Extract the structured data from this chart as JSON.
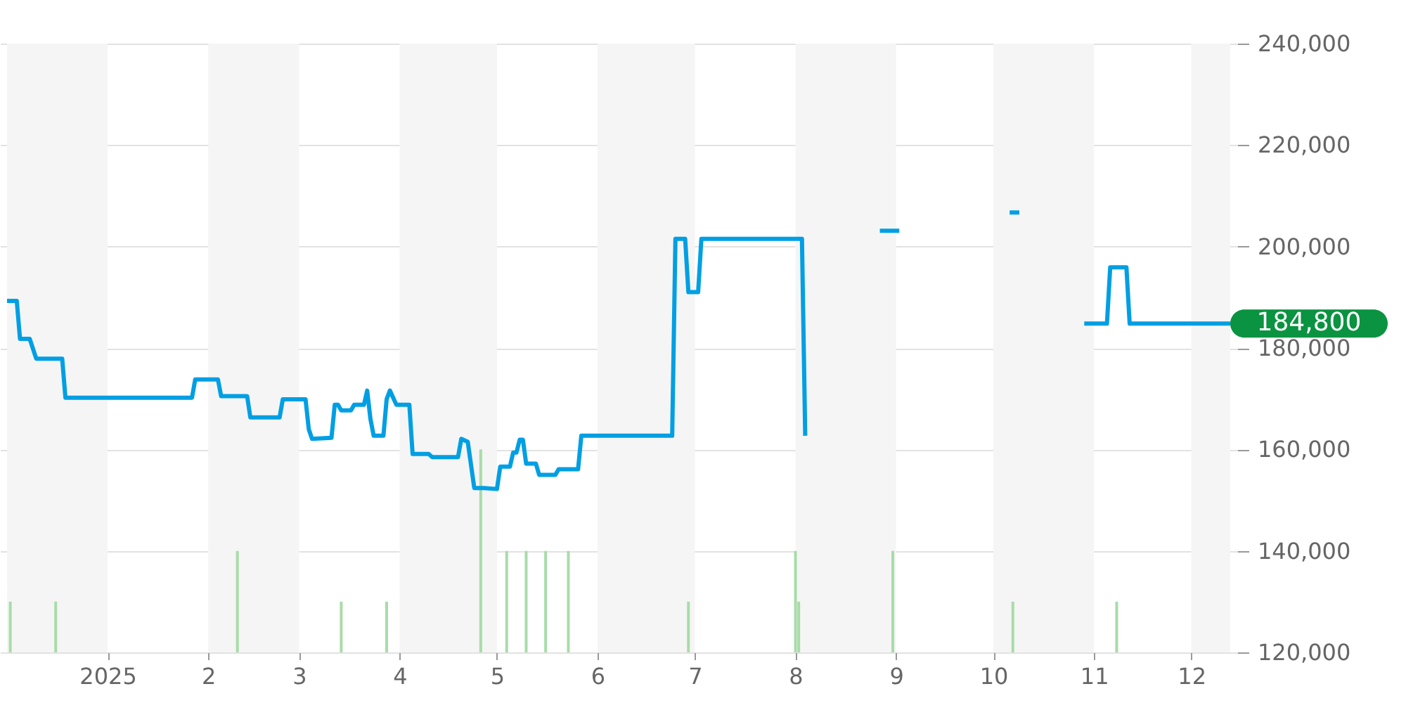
{
  "chart_data": {
    "type": "line",
    "xlim": [
      "2024-12-01",
      "2025-12-13"
    ],
    "ylim": [
      120000,
      240000
    ],
    "yticks": [
      {
        "value": 120000,
        "label": "120,000"
      },
      {
        "value": 140000,
        "label": "140,000"
      },
      {
        "value": 160000,
        "label": "160,000"
      },
      {
        "value": 180000,
        "label": "180,000"
      },
      {
        "value": 200000,
        "label": "200,000"
      },
      {
        "value": 220000,
        "label": "220,000"
      },
      {
        "value": 240000,
        "label": "240,000"
      }
    ],
    "xticks": [
      {
        "value": "2025-01-01",
        "label": "2025"
      },
      {
        "value": "2025-02-01",
        "label": "2"
      },
      {
        "value": "2025-03-01",
        "label": "3"
      },
      {
        "value": "2025-04-01",
        "label": "4"
      },
      {
        "value": "2025-05-01",
        "label": "5"
      },
      {
        "value": "2025-06-01",
        "label": "6"
      },
      {
        "value": "2025-07-01",
        "label": "7"
      },
      {
        "value": "2025-08-01",
        "label": "8"
      },
      {
        "value": "2025-09-01",
        "label": "9"
      },
      {
        "value": "2025-10-01",
        "label": "10"
      },
      {
        "value": "2025-11-01",
        "label": "11"
      },
      {
        "value": "2025-12-01",
        "label": "12"
      }
    ],
    "grid": "y",
    "marker": "none",
    "line_style": "solid",
    "bands": [
      {
        "axis": "x",
        "from": "2024-12-01",
        "to": "2025-01-01",
        "color": "#f5f5f5"
      },
      {
        "axis": "x",
        "from": "2025-02-01",
        "to": "2025-03-01",
        "color": "#f5f5f5"
      },
      {
        "axis": "x",
        "from": "2025-04-01",
        "to": "2025-05-01",
        "color": "#f5f5f5"
      },
      {
        "axis": "x",
        "from": "2025-06-01",
        "to": "2025-07-01",
        "color": "#f5f5f5"
      },
      {
        "axis": "x",
        "from": "2025-08-01",
        "to": "2025-09-01",
        "color": "#f5f5f5"
      },
      {
        "axis": "x",
        "from": "2025-10-01",
        "to": "2025-11-01",
        "color": "#f5f5f5"
      },
      {
        "axis": "x",
        "from": "2025-12-01",
        "to": "2025-12-13",
        "color": "#f5f5f5"
      }
    ],
    "series": [
      {
        "type": "bar",
        "color": "#a8dca8",
        "x": [
          "2024-12-02",
          "2024-12-16",
          "2025-02-10",
          "2025-03-14",
          "2025-03-28",
          "2025-04-26",
          "2025-05-04",
          "2025-05-10",
          "2025-05-16",
          "2025-05-23",
          "2025-06-29",
          "2025-08-01",
          "2025-08-02",
          "2025-08-31",
          "2025-10-07",
          "2025-11-08"
        ],
        "base": [
          120000,
          120000,
          120000,
          120000,
          120000,
          120000,
          120000,
          120000,
          120000,
          120000,
          120000,
          120000,
          120000,
          120000,
          120000,
          120000
        ],
        "values": [
          10000,
          10000,
          20000,
          10000,
          10000,
          40000,
          20000,
          20000,
          20000,
          20000,
          10000,
          20000,
          10000,
          20000,
          10000,
          10000
        ]
      },
      {
        "color": "#009fe3",
        "x": [
          "2024-12-01",
          "2024-12-04",
          "2024-12-05",
          "2024-12-08",
          "2024-12-10",
          "2024-12-18",
          "2024-12-19",
          "2025-01-27",
          "2025-01-28",
          "2025-02-04",
          "2025-02-05",
          "2025-02-13",
          "2025-02-14",
          "2025-02-23",
          "2025-02-24",
          "2025-03-03",
          "2025-03-04",
          "2025-03-05",
          "2025-03-11",
          "2025-03-12",
          "2025-03-13",
          "2025-03-14",
          "2025-03-17",
          "2025-03-18",
          "2025-03-21",
          "2025-03-22",
          "2025-03-23",
          "2025-03-24",
          "2025-03-27",
          "2025-03-28",
          "2025-03-29",
          "2025-03-31",
          "2025-04-04",
          "2025-04-05",
          "2025-04-10",
          "2025-04-11",
          "2025-04-19",
          "2025-04-20",
          "2025-04-22",
          "2025-04-24",
          "2025-04-27",
          "2025-05-01",
          "2025-05-02",
          "2025-05-05",
          "2025-05-06",
          "2025-05-07",
          "2025-05-08",
          "2025-05-09",
          "2025-05-10",
          "2025-05-13",
          "2025-05-14",
          "2025-05-19",
          "2025-05-20",
          "2025-05-26",
          "2025-05-27",
          "2025-06-24",
          "2025-06-25",
          "2025-06-28",
          "2025-06-29",
          "2025-07-02",
          "2025-07-03",
          "2025-08-03",
          "2025-08-04",
          "2025-08-15",
          "2025-08-27",
          "2025-09-02",
          "2025-09-20",
          "2025-10-06",
          "2025-10-09",
          "2025-10-18",
          "2025-10-29",
          "2025-11-05",
          "2025-11-06",
          "2025-11-11",
          "2025-11-12",
          "2025-12-13"
        ],
        "values": [
          189300,
          189300,
          181800,
          181800,
          177900,
          177900,
          170200,
          170200,
          173800,
          173800,
          170500,
          170500,
          166300,
          166300,
          169900,
          169900,
          164000,
          162100,
          162300,
          168800,
          168800,
          167700,
          167700,
          168800,
          168800,
          171600,
          166000,
          162700,
          162700,
          169900,
          171600,
          168800,
          168800,
          159100,
          159100,
          158500,
          158500,
          162100,
          161500,
          152400,
          152400,
          152200,
          156600,
          156600,
          159400,
          159400,
          161900,
          161900,
          157200,
          157200,
          155000,
          155000,
          156100,
          156100,
          162700,
          162700,
          201500,
          201500,
          191000,
          191000,
          201500,
          201500,
          162700,
          null,
          203100,
          203100,
          null,
          206700,
          206700,
          null,
          184800,
          184800,
          195900,
          195900,
          184800,
          184800
        ]
      }
    ],
    "annotations": [
      {
        "text": "184,800",
        "x": "2025-12-13",
        "y": 184800
      }
    ]
  }
}
